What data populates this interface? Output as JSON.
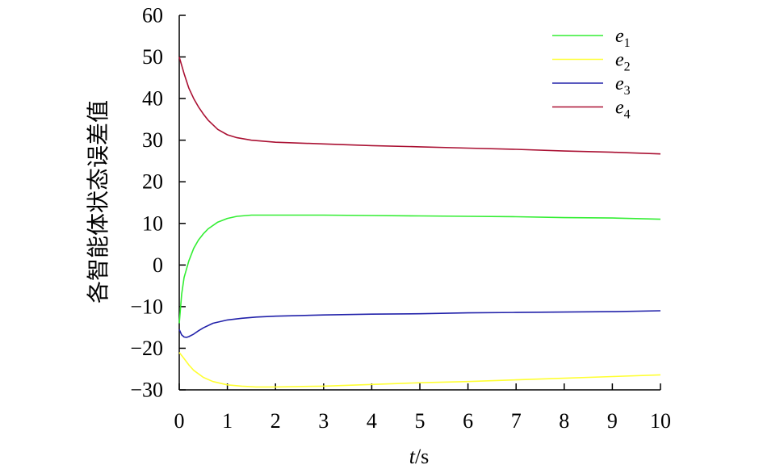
{
  "chart_data": {
    "type": "line",
    "xlabel_italic": "t",
    "xlabel_unit": "/s",
    "ylabel": "各智能体状态误差值",
    "xlim": [
      0,
      10
    ],
    "ylim": [
      -30,
      60
    ],
    "x_ticks": [
      "0",
      "1",
      "2",
      "3",
      "4",
      "5",
      "6",
      "7",
      "8",
      "9",
      "10"
    ],
    "y_ticks": [
      "60",
      "50",
      "40",
      "30",
      "20",
      "10",
      "0",
      "-10",
      "-20",
      "-30"
    ],
    "legend_position": "top-right",
    "series": [
      {
        "name": "e1",
        "base": "e",
        "sub": "1",
        "color": "#33ee33",
        "x": [
          0,
          0.05,
          0.1,
          0.2,
          0.3,
          0.4,
          0.5,
          0.6,
          0.8,
          1.0,
          1.2,
          1.5,
          2,
          3,
          4,
          5,
          6,
          7,
          8,
          9,
          10
        ],
        "y": [
          -14,
          -7,
          -3,
          1,
          4,
          6,
          7.5,
          8.7,
          10.3,
          11.2,
          11.7,
          12.0,
          12.0,
          12.0,
          11.9,
          11.8,
          11.7,
          11.6,
          11.4,
          11.3,
          11.0
        ]
      },
      {
        "name": "e2",
        "base": "e",
        "sub": "2",
        "color": "#ffff33",
        "x": [
          0,
          0.1,
          0.2,
          0.3,
          0.5,
          0.7,
          1.0,
          1.3,
          1.6,
          2,
          3,
          4,
          5,
          6,
          7,
          8,
          9,
          10
        ],
        "y": [
          -21,
          -22.5,
          -24,
          -25.3,
          -27,
          -28,
          -28.8,
          -29.1,
          -29.3,
          -29.3,
          -29.1,
          -28.7,
          -28.3,
          -28.0,
          -27.6,
          -27.2,
          -26.8,
          -26.4
        ]
      },
      {
        "name": "e3",
        "base": "e",
        "sub": "3",
        "color": "#2222aa",
        "x": [
          0,
          0.05,
          0.1,
          0.15,
          0.2,
          0.3,
          0.4,
          0.5,
          0.7,
          1.0,
          1.3,
          1.6,
          2,
          3,
          4,
          5,
          6,
          7,
          8,
          9,
          10
        ],
        "y": [
          -15.5,
          -16.8,
          -17.3,
          -17.4,
          -17.2,
          -16.6,
          -15.8,
          -15.1,
          -14.0,
          -13.2,
          -12.8,
          -12.5,
          -12.3,
          -12.0,
          -11.8,
          -11.7,
          -11.5,
          -11.4,
          -11.3,
          -11.2,
          -11.0
        ]
      },
      {
        "name": "e4",
        "base": "e",
        "sub": "4",
        "color": "#aa1133",
        "x": [
          0,
          0.1,
          0.2,
          0.3,
          0.4,
          0.5,
          0.6,
          0.8,
          1.0,
          1.2,
          1.5,
          2,
          3,
          4,
          5,
          6,
          7,
          8,
          9,
          10
        ],
        "y": [
          50,
          46,
          42.5,
          40,
          38,
          36.3,
          34.8,
          32.6,
          31.3,
          30.6,
          30.0,
          29.5,
          29.1,
          28.7,
          28.4,
          28.1,
          27.8,
          27.4,
          27.1,
          26.7
        ]
      }
    ]
  }
}
